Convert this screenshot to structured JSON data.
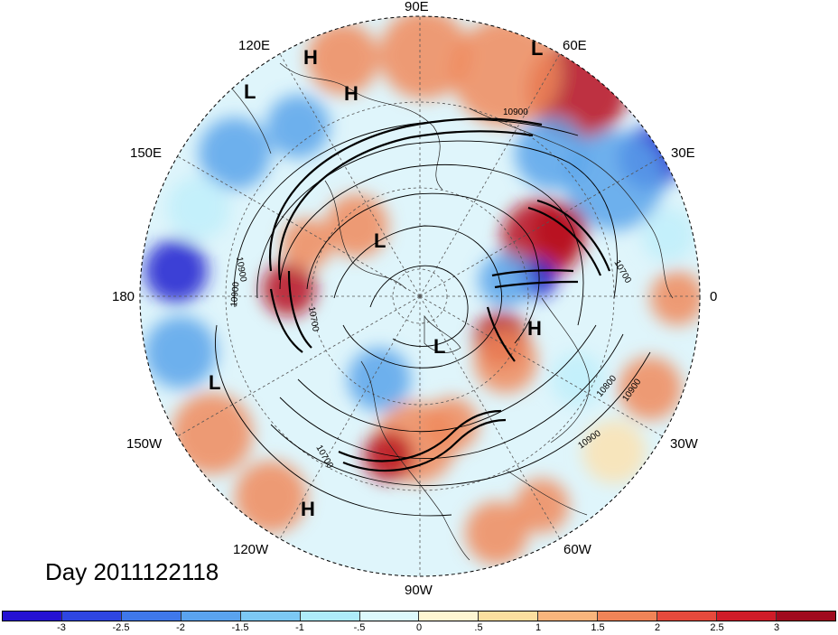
{
  "map": {
    "projection": "north-polar-stereographic",
    "lon_labels": [
      "90E",
      "60E",
      "30E",
      "0",
      "30W",
      "60W",
      "90W",
      "120W",
      "150W",
      "180",
      "150E",
      "120E"
    ],
    "pressure_centers": [
      {
        "type": "H",
        "name": "high-asia-north"
      },
      {
        "type": "H",
        "name": "high-siberia"
      },
      {
        "type": "L",
        "name": "low-india"
      },
      {
        "type": "L",
        "name": "low-east-asia"
      },
      {
        "type": "L",
        "name": "low-arctic"
      },
      {
        "type": "L",
        "name": "low-canada"
      },
      {
        "type": "H",
        "name": "high-europe"
      },
      {
        "type": "L",
        "name": "low-pacific"
      },
      {
        "type": "H",
        "name": "high-east-pacific"
      }
    ],
    "contour_labels": [
      "10900",
      "10900",
      "10900",
      "10700",
      "10900",
      "10800",
      "10900",
      "10700",
      "10700"
    ],
    "anomaly_colors": {
      "strong_negative": "#1c1fcf",
      "negative": "#5aa3ea",
      "weak_negative": "#bfeefa",
      "weak_positive": "#fbe2b0",
      "positive": "#f08a5c",
      "strong_positive": "#b8101e"
    }
  },
  "title": {
    "day_label": "Day 2011122118"
  },
  "colorbar": {
    "colors": [
      "#2512d3",
      "#2e46e2",
      "#3f78ea",
      "#5aa3ef",
      "#7cc8f4",
      "#aeecfa",
      "#ddf8fc",
      "#fdf6d2",
      "#fbdf9f",
      "#f8b57c",
      "#f08457",
      "#e64a3c",
      "#cf1c28",
      "#a00a1e"
    ],
    "ticks": [
      "-3",
      "-2.5",
      "-2",
      "-1.5",
      "-1",
      "-.5",
      "0",
      ".5",
      "1",
      "1.5",
      "2",
      "2.5",
      "3"
    ]
  }
}
